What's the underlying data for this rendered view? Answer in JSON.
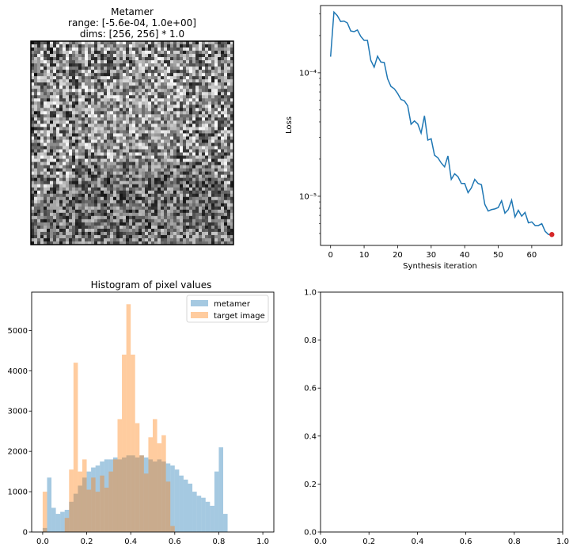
{
  "chart_data": [
    {
      "type": "image",
      "title_lines": [
        "Metamer",
        "range: [-5.6e-04, 1.0e+00]",
        "dims: [256, 256] * 1.0"
      ],
      "note": "grayscale noisy metamer image of a portrait"
    },
    {
      "type": "line",
      "title": "",
      "xlabel": "Synthesis iteration",
      "ylabel": "Loss",
      "yscale": "log",
      "xlim": [
        -3,
        69
      ],
      "ylim": [
        4e-06,
        0.00035
      ],
      "xticks": [
        0,
        10,
        20,
        30,
        40,
        50,
        60
      ],
      "yticks": [
        {
          "value": 0.0001,
          "label": "10⁻⁴"
        },
        {
          "value": 1e-05,
          "label": "10⁻⁵"
        }
      ],
      "line_color": "#1f77b4",
      "marker_color": "#d62728",
      "marker_point": {
        "x": 66,
        "y": 4.9e-06
      },
      "x": [
        0,
        1,
        2,
        3,
        4,
        5,
        6,
        7,
        8,
        9,
        10,
        11,
        12,
        13,
        14,
        15,
        16,
        17,
        18,
        19,
        20,
        21,
        22,
        23,
        24,
        25,
        26,
        27,
        28,
        29,
        30,
        31,
        32,
        33,
        34,
        35,
        36,
        37,
        38,
        39,
        40,
        41,
        42,
        43,
        44,
        45,
        46,
        47,
        48,
        49,
        50,
        51,
        52,
        53,
        54,
        55,
        56,
        57,
        58,
        59,
        60,
        61,
        62,
        63,
        64,
        65,
        66
      ],
      "y": [
        0.000135,
        0.00031,
        0.00029,
        0.00026,
        0.000262,
        0.000253,
        0.000218,
        0.000215,
        0.000222,
        0.000197,
        0.000183,
        0.000183,
        0.000126,
        0.000111,
        0.000136,
        0.000122,
        0.000121,
        8.95e-05,
        7.75e-05,
        7.42e-05,
        6.8e-05,
        6.08e-05,
        5.93e-05,
        5.4e-05,
        3.83e-05,
        4.07e-05,
        3.85e-05,
        3.25e-05,
        4.48e-05,
        2.85e-05,
        2.92e-05,
        2.15e-05,
        2.05e-05,
        1.86e-05,
        1.73e-05,
        2.12e-05,
        1.37e-05,
        1.52e-05,
        1.44e-05,
        1.27e-05,
        1.27e-05,
        1.07e-05,
        1.17e-05,
        1.37e-05,
        1.27e-05,
        1.24e-05,
        8.6e-06,
        7.6e-06,
        7.8e-06,
        7.9e-06,
        8.1e-06,
        9.2e-06,
        7.3e-06,
        7.8e-06,
        9.3e-06,
        6.8e-06,
        7.7e-06,
        6.9e-06,
        7.4e-06,
        6.1e-06,
        6.2e-06,
        5.8e-06,
        5.8e-06,
        6e-06,
        5.2e-06,
        4.9e-06,
        4.9e-06
      ]
    },
    {
      "type": "histogram",
      "title": "Histogram of pixel values",
      "xlim": [
        -0.05,
        1.05
      ],
      "ylim": [
        0,
        5950
      ],
      "xticks": [
        0.0,
        0.2,
        0.4,
        0.6,
        0.8,
        1.0
      ],
      "yticks": [
        0,
        1000,
        2000,
        3000,
        4000,
        5000
      ],
      "bin_start": 0.0,
      "bin_width": 0.02,
      "legend_position": "upper right",
      "series": [
        {
          "name": "metamer",
          "color": "#1f77b4",
          "alpha": 0.4,
          "values": [
            100,
            1350,
            600,
            450,
            500,
            550,
            750,
            950,
            1150,
            1350,
            1500,
            1600,
            1650,
            1750,
            1800,
            1800,
            1850,
            1800,
            1850,
            1900,
            1900,
            1850,
            1900,
            1850,
            1800,
            1750,
            1800,
            1750,
            1700,
            1650,
            1550,
            1400,
            1300,
            1200,
            1000,
            900,
            850,
            750,
            650,
            1500,
            2100,
            450
          ]
        },
        {
          "name": "target image",
          "color": "#ff7f0e",
          "alpha": 0.4,
          "values": [
            1000,
            0,
            0,
            0,
            0,
            350,
            1550,
            4200,
            1500,
            1800,
            1050,
            1350,
            1000,
            1400,
            1100,
            1500,
            1800,
            2800,
            4400,
            5650,
            4400,
            2700,
            1900,
            1450,
            2350,
            2800,
            2200,
            2400,
            1250,
            150,
            0,
            0,
            0,
            0,
            0,
            0,
            0,
            0,
            0,
            0,
            0,
            0
          ]
        }
      ]
    },
    {
      "type": "empty",
      "xlim": [
        0,
        1
      ],
      "ylim": [
        0,
        1
      ],
      "xticks": [
        0.0,
        0.2,
        0.4,
        0.6,
        0.8,
        1.0
      ],
      "yticks": [
        0.0,
        0.2,
        0.4,
        0.6,
        0.8,
        1.0
      ]
    }
  ]
}
